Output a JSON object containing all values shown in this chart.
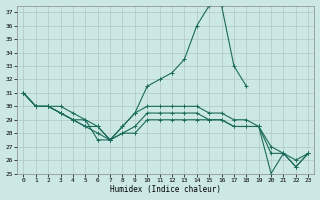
{
  "title": "",
  "xlabel": "Humidex (Indice chaleur)",
  "bg_color": "#cce8e4",
  "grid_color": "#b0c8c4",
  "line_color": "#1a6b5a",
  "xlim": [
    -0.5,
    23.5
  ],
  "ylim": [
    25,
    37.5
  ],
  "yticks": [
    25,
    26,
    27,
    28,
    29,
    30,
    31,
    32,
    33,
    34,
    35,
    36,
    37
  ],
  "xticks": [
    0,
    1,
    2,
    3,
    4,
    5,
    6,
    7,
    8,
    9,
    10,
    11,
    12,
    13,
    14,
    15,
    16,
    17,
    18,
    19,
    20,
    21,
    22,
    23
  ],
  "series": [
    {
      "x": [
        0,
        1,
        2,
        3,
        4,
        5,
        6,
        7,
        8,
        9,
        10,
        11,
        12,
        13,
        14,
        15,
        16,
        17,
        18
      ],
      "y": [
        31,
        30,
        30,
        30,
        29.5,
        29,
        27.5,
        27.5,
        28.5,
        29.5,
        31.5,
        32,
        32.5,
        33.5,
        36.0,
        37.5,
        37.5,
        33.0,
        31.5
      ]
    },
    {
      "x": [
        0,
        1,
        2,
        3,
        4,
        5,
        6,
        7,
        8,
        9,
        10,
        11,
        12,
        13,
        14,
        15,
        16,
        17,
        18,
        19,
        20,
        21,
        22,
        23
      ],
      "y": [
        31,
        30,
        30,
        29.5,
        29,
        29,
        28.5,
        27.5,
        28.5,
        29.5,
        30,
        30,
        30,
        30,
        30,
        29.5,
        29.5,
        29,
        29,
        28.5,
        27,
        26.5,
        25.5,
        26.5
      ]
    },
    {
      "x": [
        0,
        1,
        2,
        3,
        4,
        5,
        6,
        7,
        8,
        9,
        10,
        11,
        12,
        13,
        14,
        15,
        16,
        17,
        18,
        19,
        20,
        21,
        22,
        23
      ],
      "y": [
        31,
        30,
        30,
        29.5,
        29,
        28.5,
        28.5,
        27.5,
        28,
        28.5,
        29.5,
        29.5,
        29.5,
        29.5,
        29.5,
        29,
        29,
        28.5,
        28.5,
        28.5,
        25,
        26.5,
        25.5,
        26.5
      ]
    },
    {
      "x": [
        0,
        1,
        2,
        3,
        4,
        5,
        6,
        7,
        8,
        9,
        10,
        11,
        12,
        13,
        14,
        15,
        16,
        17,
        18,
        19,
        20,
        21,
        22,
        23
      ],
      "y": [
        31,
        30,
        30,
        29.5,
        29,
        28.5,
        28,
        27.5,
        28,
        28,
        29,
        29,
        29,
        29,
        29,
        29,
        29,
        28.5,
        28.5,
        28.5,
        26.5,
        26.5,
        26,
        26.5
      ]
    }
  ]
}
